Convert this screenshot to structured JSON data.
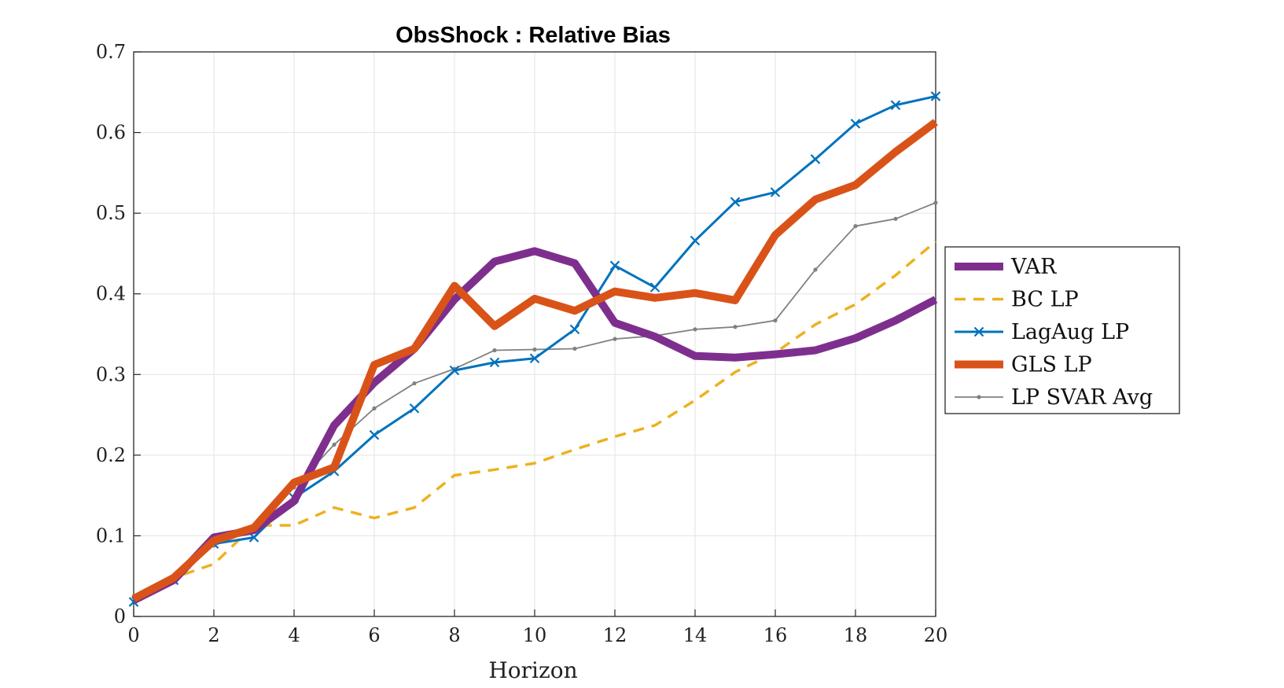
{
  "chart_data": {
    "type": "line",
    "title": "ObsShock : Relative Bias",
    "xlabel": "Horizon",
    "ylabel": "",
    "xlim": [
      0,
      20
    ],
    "ylim": [
      0,
      0.7
    ],
    "xticks": [
      0,
      2,
      4,
      6,
      8,
      10,
      12,
      14,
      16,
      18,
      20
    ],
    "xtick_labels": [
      "0",
      "2",
      "4",
      "6",
      "8",
      "10",
      "12",
      "14",
      "16",
      "18",
      "20"
    ],
    "yticks": [
      0,
      0.1,
      0.2,
      0.3,
      0.4,
      0.5,
      0.6,
      0.7
    ],
    "ytick_labels": [
      "0",
      "0.1",
      "0.2",
      "0.3",
      "0.4",
      "0.5",
      "0.6",
      "0.7"
    ],
    "grid": true,
    "legend_position": "outside-right",
    "x": [
      0,
      1,
      2,
      3,
      4,
      5,
      6,
      7,
      8,
      9,
      10,
      11,
      12,
      13,
      14,
      15,
      16,
      17,
      18,
      19,
      20
    ],
    "series": [
      {
        "name": "VAR",
        "color": "#7E2F8E",
        "style": "solid-thick",
        "values": [
          0.02,
          0.045,
          0.098,
          0.107,
          0.143,
          0.237,
          0.29,
          0.332,
          0.393,
          0.44,
          0.453,
          0.438,
          0.364,
          0.347,
          0.323,
          0.321,
          0.325,
          0.33,
          0.345,
          0.367,
          0.393
        ]
      },
      {
        "name": "BC LP",
        "color": "#EDB120",
        "style": "dashed",
        "values": [
          0.02,
          0.048,
          0.065,
          0.113,
          0.113,
          0.135,
          0.122,
          0.135,
          0.175,
          0.182,
          0.19,
          0.207,
          0.223,
          0.237,
          0.268,
          0.303,
          0.327,
          0.362,
          0.387,
          0.423,
          0.465
        ]
      },
      {
        "name": "LagAug LP",
        "color": "#0072BD",
        "style": "solid-x",
        "values": [
          0.018,
          0.045,
          0.09,
          0.098,
          0.147,
          0.18,
          0.225,
          0.258,
          0.305,
          0.315,
          0.32,
          0.356,
          0.435,
          0.408,
          0.466,
          0.514,
          0.526,
          0.567,
          0.611,
          0.634,
          0.645
        ]
      },
      {
        "name": "GLS LP",
        "color": "#D95319",
        "style": "solid-thick",
        "values": [
          0.022,
          0.048,
          0.094,
          0.11,
          0.166,
          0.185,
          0.312,
          0.332,
          0.41,
          0.36,
          0.394,
          0.379,
          0.403,
          0.395,
          0.401,
          0.392,
          0.473,
          0.517,
          0.535,
          0.576,
          0.613
        ]
      },
      {
        "name": "LP SVAR Avg",
        "color": "#808080",
        "style": "solid-thin-dot",
        "values": [
          0.024,
          0.046,
          0.088,
          0.107,
          0.16,
          0.213,
          0.258,
          0.289,
          0.307,
          0.33,
          0.331,
          0.332,
          0.344,
          0.348,
          0.356,
          0.359,
          0.367,
          0.43,
          0.484,
          0.493,
          0.513
        ]
      }
    ]
  }
}
